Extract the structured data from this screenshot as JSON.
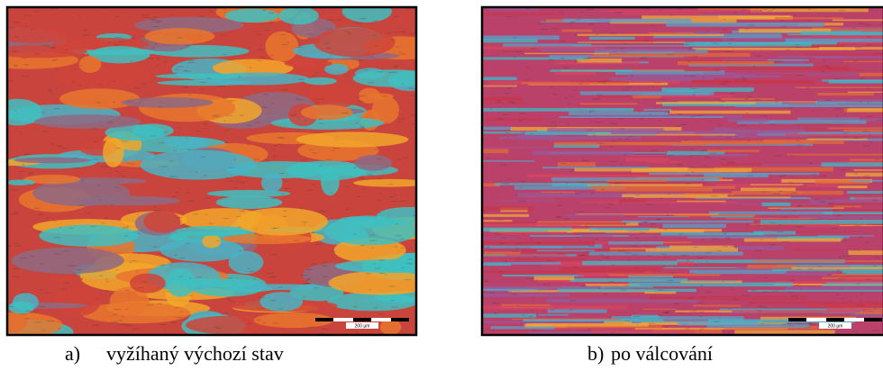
{
  "figures": [
    {
      "label": "a)",
      "caption": "vyžíhaný výchozí stav",
      "scale_label": "200 µm"
    },
    {
      "label": "b)",
      "caption": "po válcování",
      "scale_label": "200 µm"
    }
  ]
}
